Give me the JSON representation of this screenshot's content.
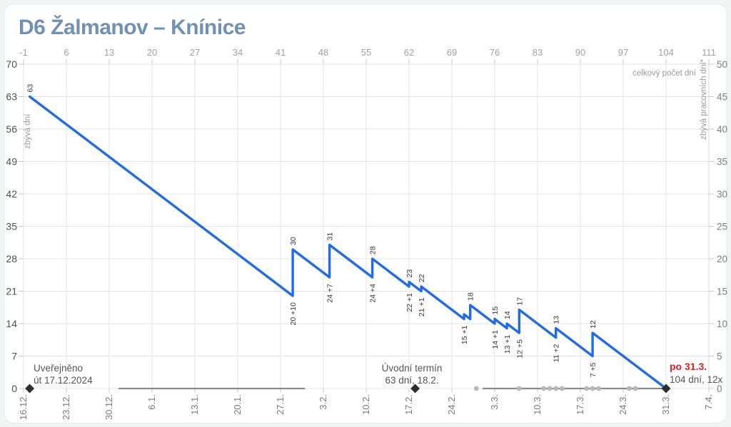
{
  "title": "D6 Žalmanov – Knínice",
  "colors": {
    "line": "#1f6bec",
    "title": "#7090b4",
    "red": "#e0201c",
    "diamond": "#2e2e2e",
    "dot": "#b8b8b8",
    "zero_segment": "#8a8a8a",
    "grid": "#e3e3e3",
    "tick": "#c9c9c9",
    "top_tick_text": "#a2a2a2",
    "left_tick_text": "#4f4f4f",
    "right_tick_text": "#7e7e7e",
    "date_text": "#7a7a7a",
    "value_label_text": "#383838"
  },
  "axes": {
    "top_label": "celkový počet dní",
    "left_label": "zbývá dní",
    "right_label": "zbývá pracovních dní*",
    "top_ticks": [
      -1,
      6,
      13,
      20,
      27,
      34,
      41,
      48,
      55,
      62,
      69,
      76,
      83,
      90,
      97,
      104,
      111
    ],
    "left_ticks": [
      0,
      7,
      14,
      21,
      28,
      35,
      42,
      49,
      56,
      63,
      70
    ],
    "right_ticks": [
      0,
      5,
      10,
      15,
      20,
      25,
      30,
      35,
      40,
      45,
      50
    ],
    "bottom_dates": [
      "16.12.",
      "23.12.",
      "30.12.",
      "6.1.",
      "13.1.",
      "20.1.",
      "27.1.",
      "3.2.",
      "10.2.",
      "17.2.",
      "24.2.",
      "3.3.",
      "10.3.",
      "17.3.",
      "24.3.",
      "31.3.",
      "7.4."
    ]
  },
  "chart_data": {
    "type": "line",
    "title": "D6 Žalmanov – Knínice",
    "x_unit": "dny od uveřejnění (0 = 17.12.2024, -1 = 16.12.)",
    "xlim": [
      -1,
      111
    ],
    "ylim_left": [
      0,
      70
    ],
    "ylim_right": [
      0,
      50
    ],
    "grid": true,
    "series": [
      {
        "name": "zbývá dní",
        "points": [
          [
            0,
            63
          ],
          [
            43,
            20
          ],
          [
            43,
            30
          ],
          [
            49,
            24
          ],
          [
            49,
            31
          ],
          [
            56,
            24
          ],
          [
            56,
            28
          ],
          [
            62,
            22
          ],
          [
            62,
            23
          ],
          [
            64,
            21
          ],
          [
            64,
            22
          ],
          [
            71,
            15
          ],
          [
            71,
            16
          ],
          [
            72,
            15
          ],
          [
            72,
            18
          ],
          [
            76,
            14
          ],
          [
            76,
            15
          ],
          [
            78,
            13
          ],
          [
            78,
            14
          ],
          [
            80,
            12
          ],
          [
            80,
            17
          ],
          [
            86,
            11
          ],
          [
            86,
            13
          ],
          [
            92,
            7
          ],
          [
            92,
            12
          ],
          [
            104,
            0
          ]
        ]
      }
    ],
    "peak_labels": [
      {
        "day": 0,
        "value": 63,
        "label": "63"
      },
      {
        "day": 43,
        "value": 30,
        "label": "30"
      },
      {
        "day": 49,
        "value": 31,
        "label": "31"
      },
      {
        "day": 56,
        "value": 28,
        "label": "28"
      },
      {
        "day": 62,
        "value": 23,
        "label": "23"
      },
      {
        "day": 64,
        "value": 22,
        "label": "22"
      },
      {
        "day": 72,
        "value": 18,
        "label": "18"
      },
      {
        "day": 76,
        "value": 15,
        "label": "15"
      },
      {
        "day": 78,
        "value": 14,
        "label": "14"
      },
      {
        "day": 80,
        "value": 17,
        "label": "17"
      },
      {
        "day": 86,
        "value": 13,
        "label": "13"
      },
      {
        "day": 92,
        "value": 12,
        "label": "12"
      }
    ],
    "valley_labels": [
      {
        "day": 43,
        "value": 20,
        "label": "20 +10"
      },
      {
        "day": 49,
        "value": 24,
        "label": "24 +7"
      },
      {
        "day": 56,
        "value": 24,
        "label": "24 +4"
      },
      {
        "day": 62,
        "value": 22,
        "label": "22 +1"
      },
      {
        "day": 64,
        "value": 21,
        "label": "21 +1"
      },
      {
        "day": 71,
        "value": 15,
        "label": "15 +1"
      },
      {
        "day": 76,
        "value": 14,
        "label": "14 +1"
      },
      {
        "day": 78,
        "value": 13,
        "label": "13 +1"
      },
      {
        "day": 80,
        "value": 12,
        "label": "12 +5"
      },
      {
        "day": 86,
        "value": 11,
        "label": "11 +2"
      },
      {
        "day": 92,
        "value": 7,
        "label": "7 +5"
      }
    ],
    "zero_segments": [
      {
        "from_day": 14.5,
        "to_day": 45
      },
      {
        "from_day": 74,
        "to_day": 104
      }
    ],
    "zero_dots_days": [
      73,
      80,
      84,
      85,
      86,
      87,
      91,
      92,
      93,
      98,
      99
    ],
    "milestone_days": [
      0,
      63,
      104
    ]
  },
  "annotations": {
    "published": {
      "line1": "Uveřejněno",
      "line2": "út 17.12.2024",
      "day": 0
    },
    "initial_term": {
      "line1": "Úvodní termín",
      "line2": "63 dní, 18.2.",
      "day": 63
    },
    "final": {
      "line1": "po 31.3.",
      "line2": "104 dní, 12x",
      "day": 104
    }
  }
}
